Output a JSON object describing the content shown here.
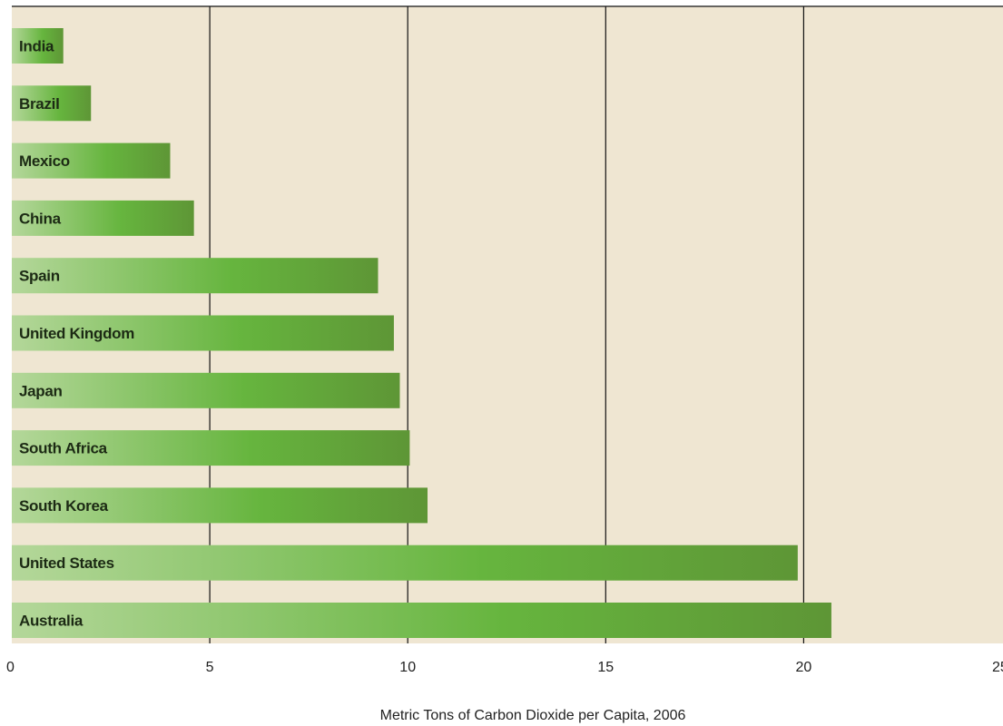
{
  "chart_data": {
    "type": "bar",
    "orientation": "horizontal",
    "categories": [
      "India",
      "Brazil",
      "Mexico",
      "China",
      "Spain",
      "United Kingdom",
      "Japan",
      "South Africa",
      "South Korea",
      "United States",
      "Australia"
    ],
    "values": [
      1.3,
      2.0,
      4.0,
      4.6,
      9.25,
      9.65,
      9.8,
      10.05,
      10.5,
      19.85,
      20.7
    ],
    "xlabel": "Metric Tons of Carbon Dioxide per Capita, 2006",
    "ylabel": "",
    "xlim": [
      0,
      25
    ],
    "xticks": [
      "0",
      "5",
      "10",
      "15",
      "20",
      "25"
    ],
    "grid": "vertical",
    "colors": {
      "background": "#efe6d2",
      "bar_start": "#b4d79a",
      "bar_mid": "#66b53e",
      "bar_end": "#5e9636",
      "grid": "#111111"
    }
  }
}
